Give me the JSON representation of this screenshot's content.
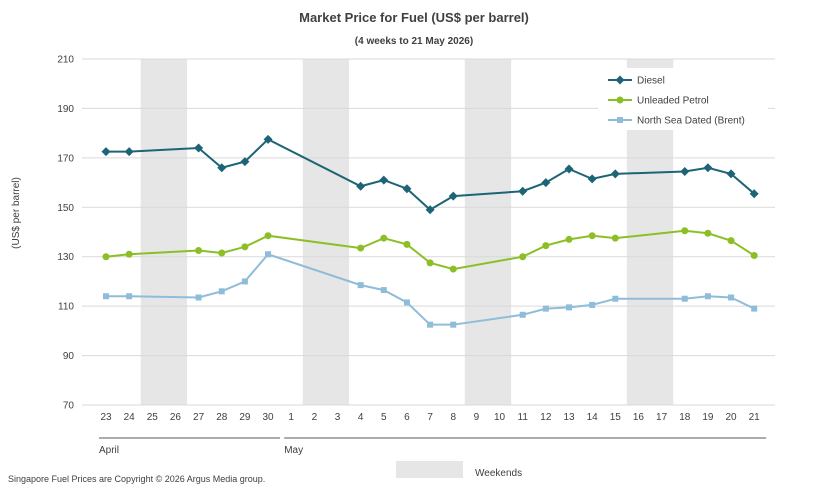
{
  "chart_data": {
    "type": "line",
    "title": "Market Price for Fuel (US$ per barrel)",
    "subtitle": "(4 weeks to 21 May 2026)",
    "ylabel": "(US$ per barrel)",
    "xlabel": "",
    "ylim": [
      70,
      210
    ],
    "yticks": [
      70,
      90,
      110,
      130,
      150,
      170,
      190,
      210
    ],
    "grid": true,
    "legend_position": "top-right",
    "categories": [
      "23",
      "24",
      "25",
      "26",
      "27",
      "28",
      "29",
      "30",
      "1",
      "2",
      "3",
      "4",
      "5",
      "6",
      "7",
      "8",
      "9",
      "10",
      "11",
      "12",
      "13",
      "14",
      "15",
      "16",
      "17",
      "18",
      "19",
      "20",
      "21"
    ],
    "months": [
      {
        "label": "April",
        "from": "23",
        "to": "30"
      },
      {
        "label": "May",
        "from": "1",
        "to": "21"
      }
    ],
    "weekend_bands": [
      [
        "25",
        "26"
      ],
      [
        "2",
        "3"
      ],
      [
        "9",
        "10"
      ],
      [
        "16",
        "17"
      ]
    ],
    "weekend_label": "Weekends",
    "weekend_color": "#e6e6e6",
    "series": [
      {
        "name": "Diesel",
        "color": "#1d6576",
        "marker": "diamond",
        "values": [
          172.5,
          172.5,
          null,
          null,
          174,
          166,
          168.5,
          177.5,
          null,
          null,
          null,
          158.5,
          161,
          157.5,
          149,
          154.5,
          null,
          null,
          156.5,
          160,
          165.5,
          161.5,
          163.5,
          null,
          null,
          164.5,
          166,
          163.5,
          155.5
        ]
      },
      {
        "name": "Unleaded Petrol",
        "color": "#8cbf26",
        "marker": "circle",
        "values": [
          130,
          131,
          null,
          null,
          132.5,
          131.5,
          134,
          138.5,
          null,
          null,
          null,
          133.5,
          137.5,
          135,
          127.5,
          125,
          null,
          null,
          130,
          134.5,
          137,
          138.5,
          137.5,
          null,
          null,
          140.5,
          139.5,
          136.5,
          130.5
        ]
      },
      {
        "name": "North Sea Dated (Brent)",
        "color": "#8fbcd9",
        "marker": "square",
        "values": [
          114,
          114,
          null,
          null,
          113.5,
          116,
          120,
          131,
          null,
          null,
          null,
          118.5,
          116.5,
          111.5,
          102.5,
          102.5,
          null,
          null,
          106.5,
          109,
          109.5,
          110.5,
          113,
          null,
          null,
          113,
          114,
          113.5,
          109
        ]
      }
    ],
    "annotations": [
      "Singapore Fuel Prices are Copyright © 2026 Argus Media group."
    ]
  }
}
